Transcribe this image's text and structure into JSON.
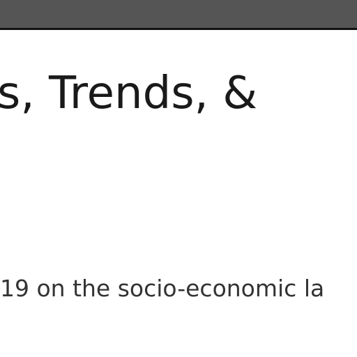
{
  "article": {
    "headline_fragment": "s, Trends, &",
    "body_fragment": "19 on the socio-economic la"
  },
  "colors": {
    "top_bar": "#555555",
    "top_bar_border": "#111111",
    "headline_text": "#1a1a1a",
    "body_text": "#333333",
    "background": "#ffffff"
  }
}
